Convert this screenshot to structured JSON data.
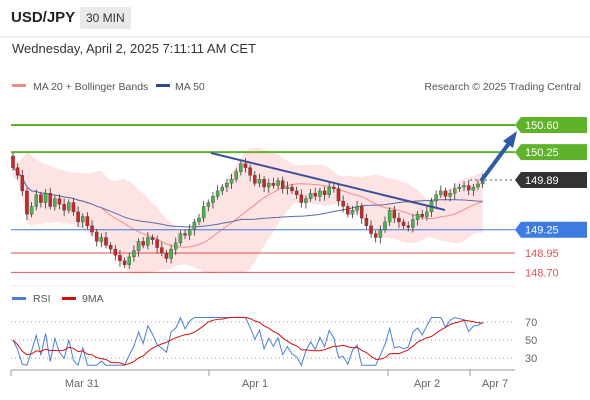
{
  "header": {
    "pair": "USD/JPY",
    "timeframe": "30 MIN",
    "datetime": "Wednesday, April 2, 2025 7:11:11 AM CET"
  },
  "legend": {
    "ma20_label": "MA 20 + Bollinger Bands",
    "ma50_label": "MA 50",
    "ma20_color": "#f08c8c",
    "ma50_color": "#2f4a8a",
    "copyright": "Research © 2025 Trading Central"
  },
  "levels": [
    {
      "value": "150.60",
      "price": 150.6,
      "kind": "resistance",
      "color": "#5fb32b"
    },
    {
      "value": "150.25",
      "price": 150.25,
      "kind": "resistance",
      "color": "#5fb32b"
    },
    {
      "value": "149.89",
      "price": 149.89,
      "kind": "last",
      "color": "#333333"
    },
    {
      "value": "149.25",
      "price": 149.25,
      "kind": "pivot",
      "color": "#3d7be0"
    },
    {
      "value": "148.95",
      "price": 148.95,
      "kind": "support",
      "color": "#e05050"
    },
    {
      "value": "148.70",
      "price": 148.7,
      "kind": "support",
      "color": "#e05050"
    }
  ],
  "rsi_legend": {
    "rsi_label": "RSI",
    "ma_label": "9MA",
    "rsi_color": "#4a7fd6",
    "ma_color": "#d01010"
  },
  "rsi_ticks": [
    "70",
    "50",
    "30"
  ],
  "x_ticks": [
    "Mar 31",
    "Apr 1",
    "Apr 2",
    "Apr 7"
  ],
  "colors": {
    "bull": "#4caf50",
    "bear": "#c62828",
    "band_fill": "#fde2e2",
    "trend": "#3b4f9a",
    "arrow": "#2e5aa6"
  }
}
